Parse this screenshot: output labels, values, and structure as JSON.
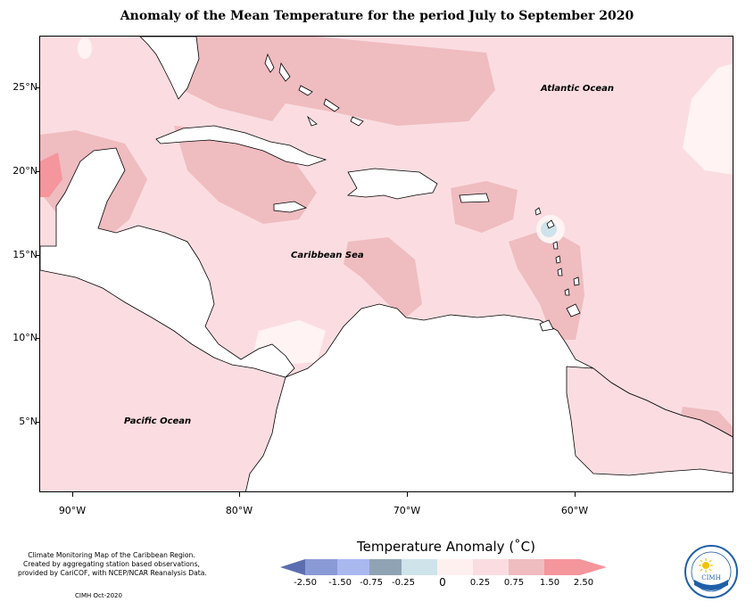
{
  "title": "Anomaly of the Mean Temperature for the period July to September 2020",
  "latitude_labels": [
    "25°N",
    "20°N",
    "15°N",
    "10°N",
    "5°N"
  ],
  "longitude_labels": [
    "90°W",
    "80°W",
    "70°W",
    "60°W"
  ],
  "ocean_labels": {
    "atlantic": "Atlantic Ocean",
    "caribbean": "Caribbean Sea",
    "pacific": "Pacific Ocean"
  },
  "notes": [
    "Climate Monitoring Map of the Caribbean Region.",
    "Created by aggregating station based observations,",
    "provided by CariCOF, with NCEP/NCAR Reanalysis Data."
  ],
  "credit": "CIMH Oct-2020",
  "legend": {
    "title": "Temperature Anomaly (˚C)",
    "labels": [
      "-2.50",
      "-1.50",
      "-0.75",
      "-0.25",
      "0",
      "0.25",
      "0.75",
      "1.50",
      "2.50"
    ],
    "colors": [
      "#5b6fb0",
      "#8a9ad6",
      "#aab8f0",
      "#8fa3b4",
      "#cfe3ea",
      "#fff0f0",
      "#fbdde1",
      "#efbcc0",
      "#f5959c"
    ]
  },
  "colors": {
    "land": "#ffffff",
    "anomaly_0_25": "#fbdde1",
    "anomaly_0_75": "#efbcc0",
    "anomaly_1_50": "#f5959c",
    "anomaly_neg": "#cfe3ea",
    "near_zero": "#fff3f3"
  },
  "logo": {
    "text": "CIMH",
    "icon": "sun-icon"
  }
}
